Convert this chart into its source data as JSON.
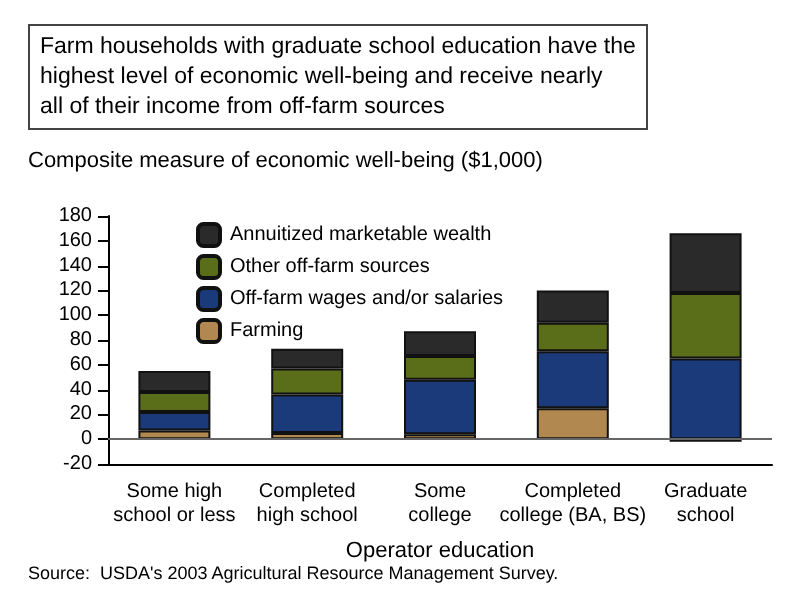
{
  "chart_data": {
    "type": "bar",
    "title": "Farm households with graduate school education have the\nhighest level of economic well-being and receive nearly\nall of their income from off-farm sources",
    "ylabel": "Composite measure of economic well-being ($1,000)",
    "xlabel": "Operator education",
    "annotations": [
      "Source:  USDA's 2003 Agricultural Resource Management Survey."
    ],
    "categories": [
      "Some high\nschool or less",
      "Completed\nhigh school",
      "Some\ncollege",
      "Completed\ncollege (BA, BS)",
      "Graduate\nschool"
    ],
    "stacked": true,
    "series": [
      {
        "name": "Farming",
        "color": "#b08850",
        "values": [
          7,
          5,
          4,
          25,
          -2
        ]
      },
      {
        "name": "Off-farm wages and/or salaries",
        "color": "#1a3a7a",
        "values": [
          15,
          31,
          44,
          46,
          65
        ]
      },
      {
        "name": "Other off-farm sources",
        "color": "#5a6e1a",
        "values": [
          16,
          21,
          19,
          23,
          53
        ]
      },
      {
        "name": "Annuitized marketable wealth",
        "color": "#2a2a2a",
        "values": [
          17,
          16,
          20,
          26,
          48
        ]
      }
    ],
    "ylim": [
      -20,
      180
    ],
    "yticks": [
      -20,
      0,
      20,
      40,
      60,
      80,
      100,
      120,
      140,
      160,
      180
    ],
    "ref_lines": [
      {
        "axis": "y",
        "value": 0,
        "color": "#666666"
      }
    ],
    "grid": false,
    "legend": "top left"
  }
}
